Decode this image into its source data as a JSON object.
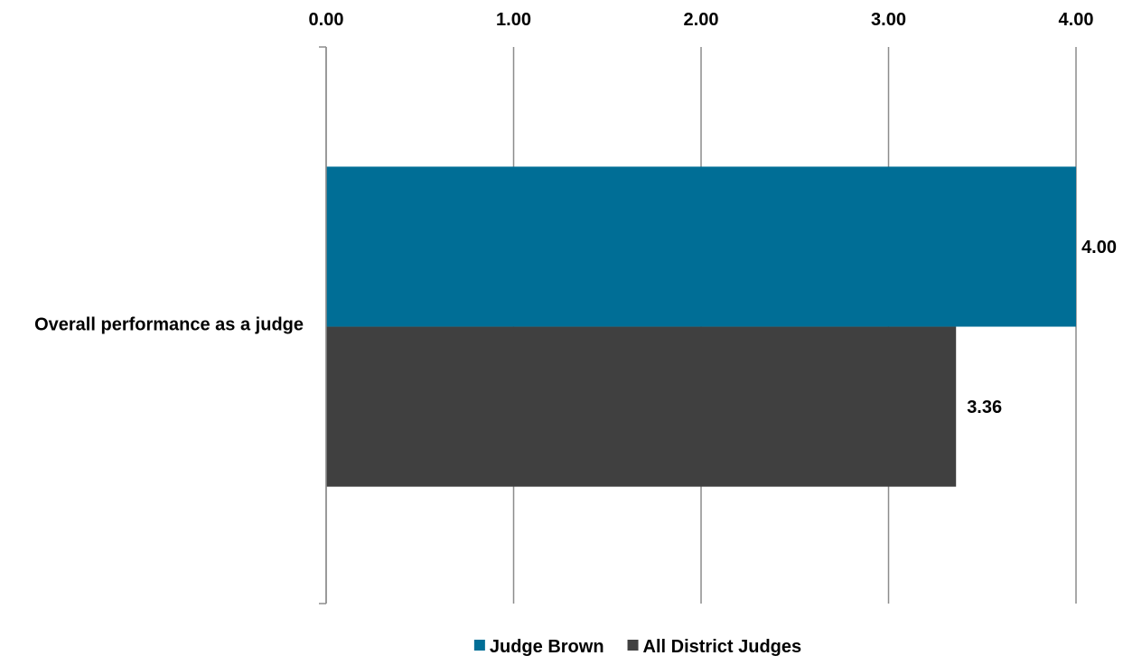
{
  "chart_data": {
    "type": "bar",
    "orientation": "horizontal",
    "categories": [
      "Overall performance as a judge"
    ],
    "series": [
      {
        "name": "Judge Brown",
        "values": [
          4.0
        ],
        "color": "#006e96",
        "labels": [
          "4.00"
        ]
      },
      {
        "name": "All District Judges",
        "values": [
          3.36
        ],
        "color": "#404040",
        "labels": [
          "3.36"
        ]
      }
    ],
    "xlim": [
      0,
      4
    ],
    "x_ticks": [
      0,
      1,
      2,
      3,
      4
    ],
    "x_tick_labels": [
      "0.00",
      "1.00",
      "2.00",
      "3.00",
      "4.00"
    ],
    "x_axis_position": "top",
    "grid": true,
    "legend_position": "bottom"
  }
}
